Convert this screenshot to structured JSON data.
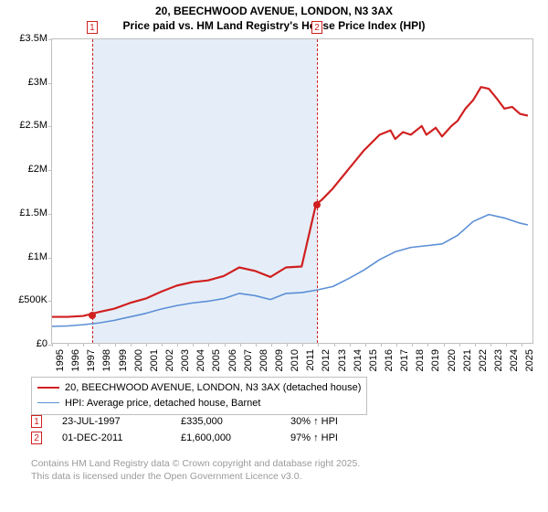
{
  "title": {
    "line1": "20, BEECHWOOD AVENUE, LONDON, N3 3AX",
    "line2": "Price paid vs. HM Land Registry's House Price Index (HPI)"
  },
  "chart": {
    "type": "line",
    "xlim": [
      1995,
      2025.8
    ],
    "ylim": [
      0,
      3500000
    ],
    "y_ticks": [
      0,
      500000,
      1000000,
      1500000,
      2000000,
      2500000,
      3000000,
      3500000
    ],
    "y_tick_labels": [
      "£0",
      "£500K",
      "£1M",
      "£1.5M",
      "£2M",
      "£2.5M",
      "£3M",
      "£3.5M"
    ],
    "x_ticks": [
      1995,
      1996,
      1997,
      1998,
      1999,
      2000,
      2001,
      2002,
      2003,
      2004,
      2005,
      2006,
      2007,
      2008,
      2009,
      2010,
      2011,
      2012,
      2013,
      2014,
      2015,
      2016,
      2017,
      2018,
      2019,
      2020,
      2021,
      2022,
      2023,
      2024,
      2025
    ],
    "background_color": "#ffffff",
    "grid_color": "#bfbfbf",
    "shade_range": [
      1997.56,
      2011.92
    ],
    "shade_color": "rgba(180,205,235,0.35)",
    "series": [
      {
        "name": "20, BEECHWOOD AVENUE, LONDON, N3 3AX (detached house)",
        "color": "#d02020",
        "width": 2.2,
        "points": [
          [
            1995,
            300000
          ],
          [
            1996,
            300000
          ],
          [
            1997,
            310000
          ],
          [
            1997.56,
            335000
          ],
          [
            1998,
            355000
          ],
          [
            1999,
            395000
          ],
          [
            2000,
            460000
          ],
          [
            2001,
            510000
          ],
          [
            2002,
            590000
          ],
          [
            2003,
            660000
          ],
          [
            2004,
            700000
          ],
          [
            2005,
            720000
          ],
          [
            2006,
            770000
          ],
          [
            2007,
            870000
          ],
          [
            2008,
            830000
          ],
          [
            2009,
            760000
          ],
          [
            2010,
            870000
          ],
          [
            2011,
            880000
          ],
          [
            2011.92,
            1600000
          ],
          [
            2012.3,
            1650000
          ],
          [
            2013,
            1780000
          ],
          [
            2014,
            2000000
          ],
          [
            2015,
            2220000
          ],
          [
            2016,
            2400000
          ],
          [
            2016.7,
            2450000
          ],
          [
            2017,
            2350000
          ],
          [
            2017.5,
            2430000
          ],
          [
            2018,
            2400000
          ],
          [
            2018.7,
            2500000
          ],
          [
            2019,
            2400000
          ],
          [
            2019.6,
            2480000
          ],
          [
            2020,
            2380000
          ],
          [
            2020.6,
            2500000
          ],
          [
            2021,
            2560000
          ],
          [
            2021.5,
            2700000
          ],
          [
            2022,
            2800000
          ],
          [
            2022.5,
            2950000
          ],
          [
            2023,
            2930000
          ],
          [
            2023.5,
            2820000
          ],
          [
            2024,
            2700000
          ],
          [
            2024.5,
            2720000
          ],
          [
            2025,
            2640000
          ],
          [
            2025.5,
            2620000
          ]
        ]
      },
      {
        "name": "HPI: Average price, detached house, Barnet",
        "color": "#5b8fd6",
        "width": 1.6,
        "points": [
          [
            1995,
            190000
          ],
          [
            1996,
            195000
          ],
          [
            1997,
            210000
          ],
          [
            1998,
            230000
          ],
          [
            1999,
            260000
          ],
          [
            2000,
            300000
          ],
          [
            2001,
            340000
          ],
          [
            2002,
            390000
          ],
          [
            2003,
            430000
          ],
          [
            2004,
            460000
          ],
          [
            2005,
            480000
          ],
          [
            2006,
            510000
          ],
          [
            2007,
            570000
          ],
          [
            2008,
            545000
          ],
          [
            2009,
            500000
          ],
          [
            2010,
            570000
          ],
          [
            2011,
            580000
          ],
          [
            2012,
            610000
          ],
          [
            2013,
            650000
          ],
          [
            2014,
            740000
          ],
          [
            2015,
            840000
          ],
          [
            2016,
            960000
          ],
          [
            2017,
            1050000
          ],
          [
            2018,
            1100000
          ],
          [
            2019,
            1120000
          ],
          [
            2020,
            1140000
          ],
          [
            2021,
            1240000
          ],
          [
            2022,
            1400000
          ],
          [
            2023,
            1480000
          ],
          [
            2024,
            1440000
          ],
          [
            2025,
            1380000
          ],
          [
            2025.5,
            1360000
          ]
        ]
      }
    ],
    "sale_markers": [
      {
        "n": "1",
        "x": 1997.56,
        "y": 335000
      },
      {
        "n": "2",
        "x": 2011.92,
        "y": 1600000
      }
    ],
    "marker_color": "#d02020",
    "tick_fontsize": 11
  },
  "legend": {
    "items": [
      {
        "color": "#d02020",
        "width": 2.2,
        "label": "20, BEECHWOOD AVENUE, LONDON, N3 3AX (detached house)"
      },
      {
        "color": "#5b8fd6",
        "width": 1.6,
        "label": "HPI: Average price, detached house, Barnet"
      }
    ]
  },
  "sales": [
    {
      "n": "1",
      "date": "23-JUL-1997",
      "price": "£335,000",
      "pct": "30% ↑ HPI"
    },
    {
      "n": "2",
      "date": "01-DEC-2011",
      "price": "£1,600,000",
      "pct": "97% ↑ HPI"
    }
  ],
  "attribution": {
    "line1": "Contains HM Land Registry data © Crown copyright and database right 2025.",
    "line2": "This data is licensed under the Open Government Licence v3.0."
  }
}
